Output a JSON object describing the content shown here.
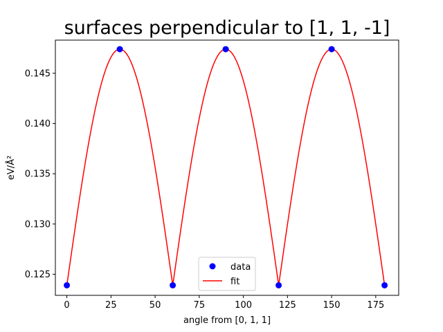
{
  "chart_data": {
    "type": "line",
    "title": "surfaces perpendicular to [1, 1, -1]",
    "xlabel": "angle from [0, 1, 1]",
    "ylabel": "eV/Å²",
    "xlim": [
      -6.5,
      188
    ],
    "ylim": [
      0.1229,
      0.1483
    ],
    "x_ticks": [
      0,
      25,
      50,
      75,
      100,
      125,
      150,
      175
    ],
    "y_ticks": [
      0.125,
      0.13,
      0.135,
      0.14,
      0.145
    ],
    "y_tick_labels": [
      "0.125",
      "0.130",
      "0.135",
      "0.140",
      "0.145"
    ],
    "grid": false,
    "legend": {
      "placement": "lower center",
      "entries": [
        "data",
        "fit"
      ]
    },
    "series": [
      {
        "name": "data",
        "kind": "scatter",
        "color": "#0000ff",
        "x": [
          0,
          30,
          60,
          90,
          120,
          150,
          180
        ],
        "y": [
          0.1239,
          0.1474,
          0.1239,
          0.1474,
          0.1239,
          0.1474,
          0.1239
        ]
      },
      {
        "name": "fit",
        "kind": "line",
        "color": "#ff0000",
        "model": "abs-sine",
        "period_deg": 60,
        "phase_deg": 30,
        "baseline": 0.1239,
        "amplitude": 0.0235
      }
    ]
  }
}
